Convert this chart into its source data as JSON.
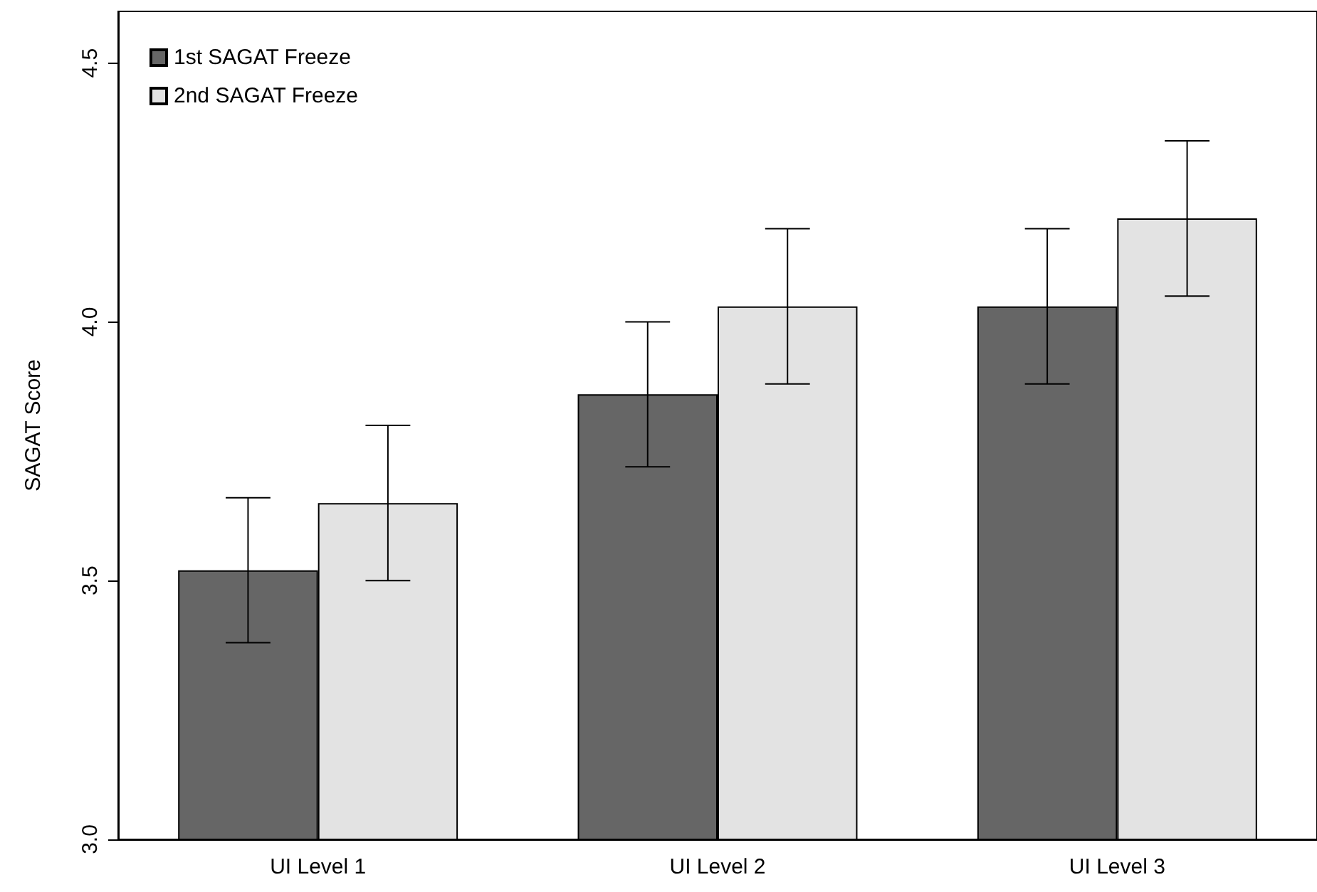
{
  "chart_data": {
    "type": "bar",
    "ylabel": "SAGAT Score",
    "categories": [
      "UI Level 1",
      "UI Level 2",
      "UI Level 3"
    ],
    "series": [
      {
        "name": "1st SAGAT Freeze",
        "color": "#666666",
        "values": [
          3.52,
          3.86,
          4.03
        ],
        "errors": [
          0.14,
          0.14,
          0.15
        ]
      },
      {
        "name": "2nd SAGAT Freeze",
        "color": "#e3e3e3",
        "values": [
          3.65,
          4.03,
          4.2
        ],
        "errors": [
          0.15,
          0.15,
          0.15
        ]
      }
    ],
    "ylim": [
      3.0,
      4.6
    ],
    "yticks": [
      {
        "value": 3,
        "label": "3.0"
      },
      {
        "value": 3.5,
        "label": "3.5"
      },
      {
        "value": 4,
        "label": "4.0"
      },
      {
        "value": 4.5,
        "label": "4.5"
      }
    ],
    "grid": false,
    "legend": "top left"
  }
}
